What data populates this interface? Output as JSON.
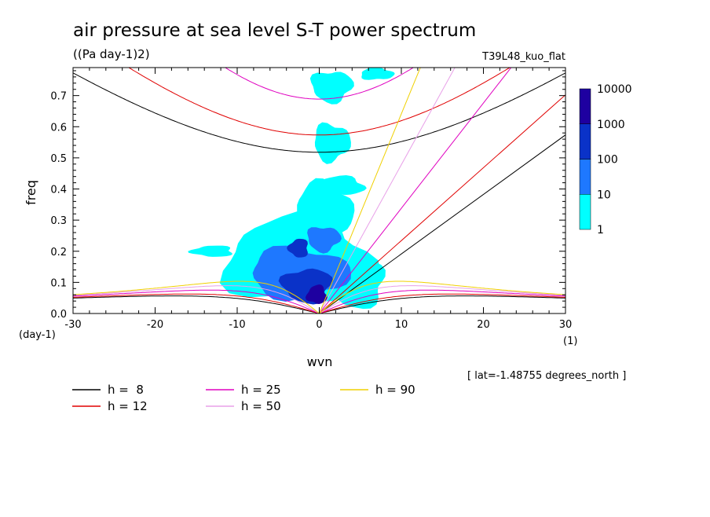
{
  "chart_data": {
    "type": "contour",
    "title": "air pressure at sea level S-T power spectrum",
    "units": "((Pa day-1)2)",
    "run_label": "T39L48_kuo_flat",
    "xlabel": "wvn",
    "ylabel": "freq",
    "x_unit": "(1)",
    "y_unit": "(day-1)",
    "xlim": [
      -30,
      30
    ],
    "ylim": [
      0,
      0.79
    ],
    "x_ticks": [
      "-30",
      "-20",
      "-10",
      "0",
      "10",
      "20",
      "30"
    ],
    "y_ticks": [
      "0.0",
      "0.1",
      "0.2",
      "0.3",
      "0.4",
      "0.5",
      "0.6",
      "0.7"
    ],
    "note": "[ lat=-1.48755 degrees_north ]",
    "colorbar": {
      "levels": [
        "1",
        "10",
        "100",
        "1000",
        "10000"
      ],
      "colors": [
        "#00ffff",
        "#1e78ff",
        "#0a32c8",
        "#1e00a0"
      ]
    },
    "power_regions": [
      {
        "level": 1,
        "cx": -2.5,
        "cy": 0.17,
        "rx": 9,
        "ry": 0.14
      },
      {
        "level": 1,
        "cx": 0.5,
        "cy": 0.33,
        "rx": 3.5,
        "ry": 0.09
      },
      {
        "level": 1,
        "cx": 1.5,
        "cy": 0.55,
        "rx": 2.2,
        "ry": 0.06
      },
      {
        "level": 1,
        "cx": 1.5,
        "cy": 0.73,
        "rx": 2.5,
        "ry": 0.05
      },
      {
        "level": 1,
        "cx": 4.5,
        "cy": 0.1,
        "rx": 3.5,
        "ry": 0.08
      },
      {
        "level": 1,
        "cx": -13,
        "cy": 0.2,
        "rx": 2.5,
        "ry": 0.018
      },
      {
        "level": 1,
        "cx": 2.5,
        "cy": 0.41,
        "rx": 3,
        "ry": 0.03
      },
      {
        "level": 1,
        "cx": 7,
        "cy": 0.77,
        "rx": 2,
        "ry": 0.02
      },
      {
        "level": 10,
        "cx": -2.5,
        "cy": 0.13,
        "rx": 6,
        "ry": 0.08
      },
      {
        "level": 10,
        "cx": 0.5,
        "cy": 0.24,
        "rx": 2,
        "ry": 0.04
      },
      {
        "level": 100,
        "cx": -1.5,
        "cy": 0.09,
        "rx": 3,
        "ry": 0.055
      },
      {
        "level": 100,
        "cx": -2.5,
        "cy": 0.21,
        "rx": 1.2,
        "ry": 0.03
      },
      {
        "level": 1000,
        "cx": -0.3,
        "cy": 0.06,
        "rx": 1.2,
        "ry": 0.03
      }
    ],
    "dispersion_curves": [
      {
        "name": "h =  8",
        "h": 8,
        "color": "#000000"
      },
      {
        "name": "h = 12",
        "h": 12,
        "color": "#e00000"
      },
      {
        "name": "h = 25",
        "h": 25,
        "color": "#e000c0"
      },
      {
        "name": "h = 50",
        "h": 50,
        "color": "#e8a0e8"
      },
      {
        "name": "h = 90",
        "h": 90,
        "color": "#f0d000"
      }
    ]
  }
}
